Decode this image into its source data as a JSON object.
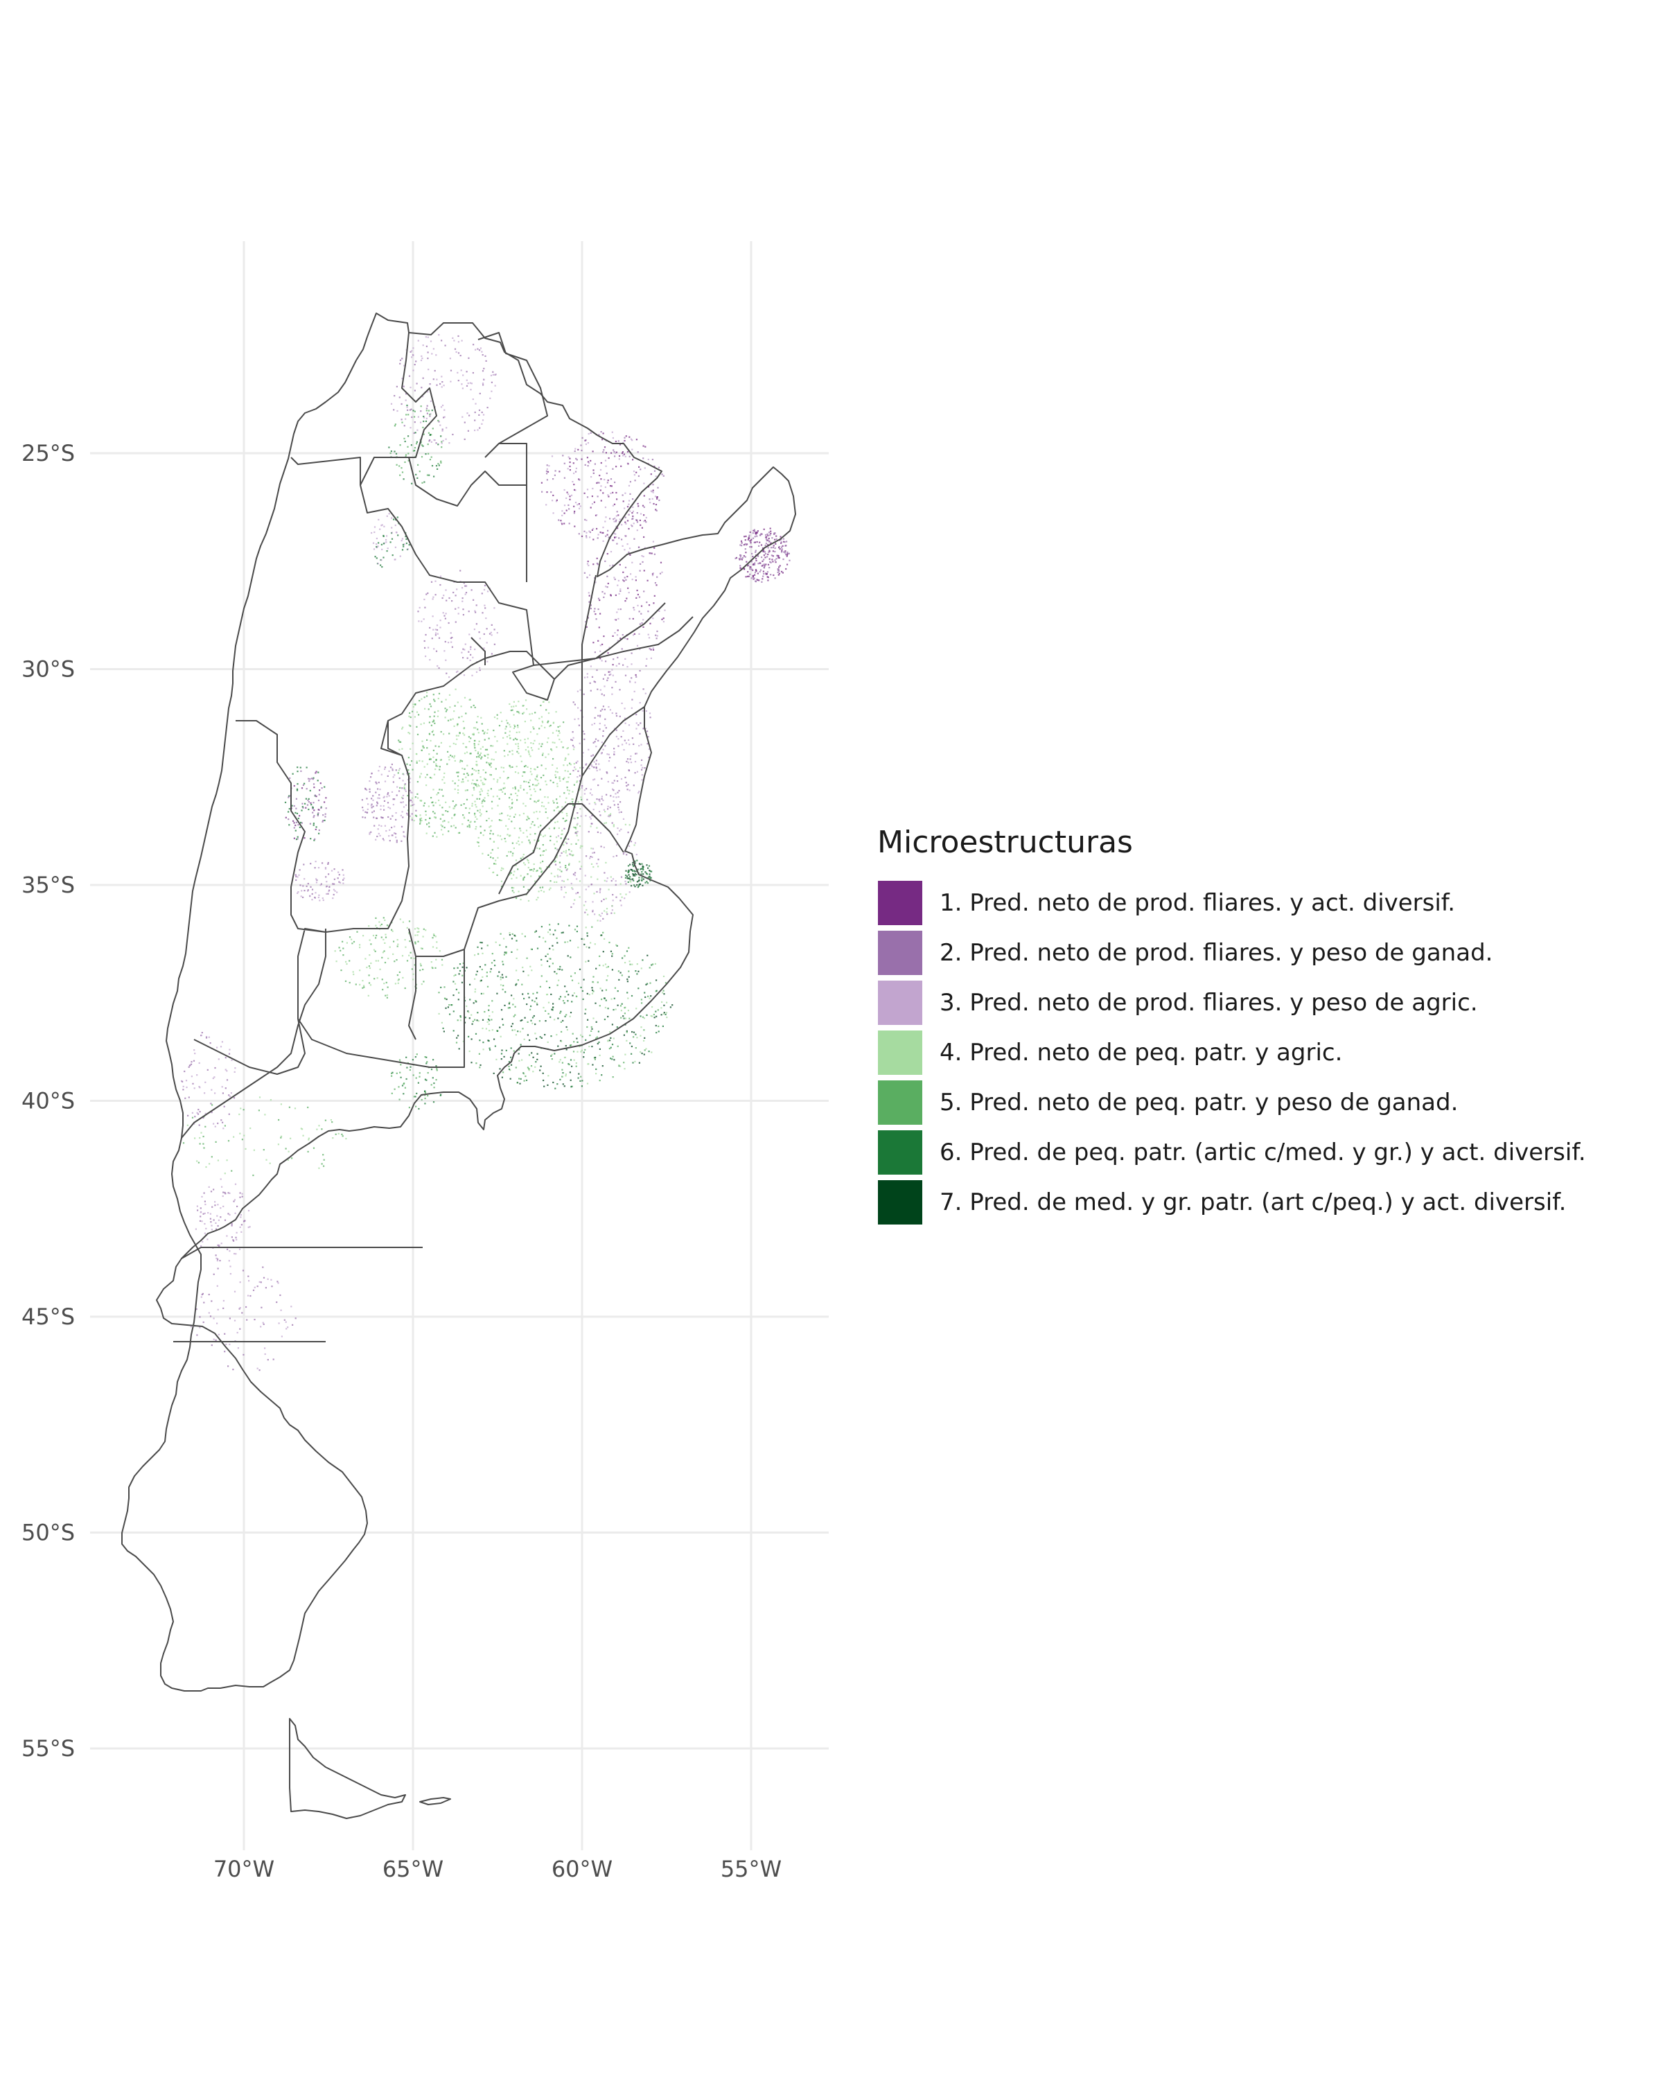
{
  "map": {
    "x_axis": {
      "ticks": [
        {
          "value": -70,
          "label": "70°W"
        },
        {
          "value": -65,
          "label": "65°W"
        },
        {
          "value": -60,
          "label": "60°W"
        },
        {
          "value": -55,
          "label": "55°W"
        }
      ]
    },
    "y_axis": {
      "ticks": [
        {
          "value": -25,
          "label": "25°S"
        },
        {
          "value": -30,
          "label": "30°S"
        },
        {
          "value": -35,
          "label": "35°S"
        },
        {
          "value": -40,
          "label": "40°S"
        },
        {
          "value": -45,
          "label": "45°S"
        },
        {
          "value": -50,
          "label": "50°S"
        },
        {
          "value": -55,
          "label": "55°S"
        }
      ]
    },
    "grid": true,
    "legend_position": "right"
  },
  "legend": {
    "title": "Microestructuras",
    "items": [
      {
        "label": "1. Pred. neto de prod. fliares. y act. diversif.",
        "color": "#762a83"
      },
      {
        "label": "2. Pred. neto de prod. fliares. y peso de ganad.",
        "color": "#9970ab"
      },
      {
        "label": "3. Pred. neto de prod. fliares. y peso de agric.",
        "color": "#c2a5cf"
      },
      {
        "label": "4. Pred. neto de peq. patr. y agric.",
        "color": "#a6dba0"
      },
      {
        "label": "5. Pred. neto de peq. patr. y peso de ganad.",
        "color": "#5aae61"
      },
      {
        "label": "6. Pred. de peq. patr. (artic c/med. y gr.) y act. diversif.",
        "color": "#1b7837"
      },
      {
        "label": "7. Pred. de med. y gr. patr. (art c/peq.) y act. diversif.",
        "color": "#00441b"
      }
    ]
  }
}
